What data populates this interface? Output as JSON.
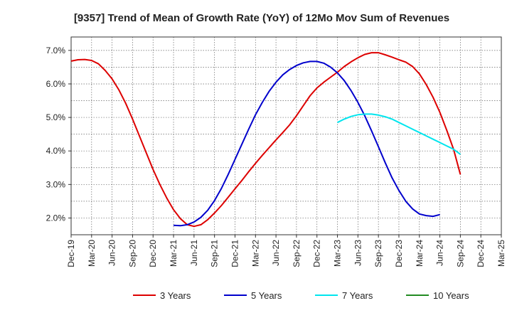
{
  "chart_data": {
    "type": "line",
    "title": "[9357]  Trend of Mean of Growth Rate (YoY) of 12Mo Mov Sum of Revenues",
    "xlabel": "",
    "ylabel": "",
    "ylim": [
      1.5,
      7.4
    ],
    "y_ticks": [
      2.0,
      3.0,
      4.0,
      5.0,
      6.0,
      7.0
    ],
    "y_tick_labels": [
      "2.0%",
      "3.0%",
      "4.0%",
      "5.0%",
      "6.0%",
      "7.0%"
    ],
    "x_start": "Dec-19",
    "x_tick_labels": [
      "Dec-19",
      "Mar-20",
      "Jun-20",
      "Sep-20",
      "Dec-20",
      "Mar-21",
      "Jun-21",
      "Sep-21",
      "Dec-21",
      "Mar-22",
      "Jun-22",
      "Sep-22",
      "Dec-22",
      "Mar-23",
      "Jun-23",
      "Sep-23",
      "Dec-23",
      "Mar-24",
      "Jun-24",
      "Sep-24",
      "Dec-24",
      "Mar-25"
    ],
    "grid": true,
    "legend_position": "bottom",
    "series": [
      {
        "name": "3 Years",
        "color": "#dd0000",
        "start_month": 0,
        "values": [
          6.68,
          6.72,
          6.73,
          6.7,
          6.6,
          6.4,
          6.15,
          5.82,
          5.42,
          4.95,
          4.45,
          3.95,
          3.45,
          3.0,
          2.6,
          2.25,
          1.98,
          1.8,
          1.75,
          1.8,
          1.95,
          2.15,
          2.37,
          2.62,
          2.87,
          3.12,
          3.38,
          3.63,
          3.87,
          4.1,
          4.33,
          4.55,
          4.78,
          5.05,
          5.35,
          5.65,
          5.88,
          6.05,
          6.2,
          6.35,
          6.52,
          6.66,
          6.78,
          6.88,
          6.93,
          6.93,
          6.87,
          6.8,
          6.72,
          6.65,
          6.52,
          6.3,
          5.98,
          5.6,
          5.15,
          4.62,
          4.05,
          3.3
        ]
      },
      {
        "name": "5 Years",
        "color": "#0000cc",
        "start_month": 15,
        "values": [
          1.78,
          1.77,
          1.8,
          1.88,
          2.02,
          2.23,
          2.52,
          2.88,
          3.3,
          3.75,
          4.2,
          4.65,
          5.08,
          5.45,
          5.78,
          6.05,
          6.27,
          6.43,
          6.55,
          6.63,
          6.67,
          6.67,
          6.62,
          6.5,
          6.33,
          6.1,
          5.8,
          5.45,
          5.05,
          4.6,
          4.13,
          3.65,
          3.2,
          2.82,
          2.5,
          2.27,
          2.12,
          2.07,
          2.05,
          2.1
        ]
      },
      {
        "name": "7 Years",
        "color": "#00e5ee",
        "start_month": 39,
        "values": [
          4.85,
          4.95,
          5.03,
          5.08,
          5.1,
          5.1,
          5.07,
          5.02,
          4.95,
          4.85,
          4.75,
          4.65,
          4.55,
          4.45,
          4.35,
          4.25,
          4.15,
          4.05,
          3.9
        ]
      },
      {
        "name": "10 Years",
        "color": "#228b22",
        "start_month": 0,
        "values": []
      }
    ]
  }
}
